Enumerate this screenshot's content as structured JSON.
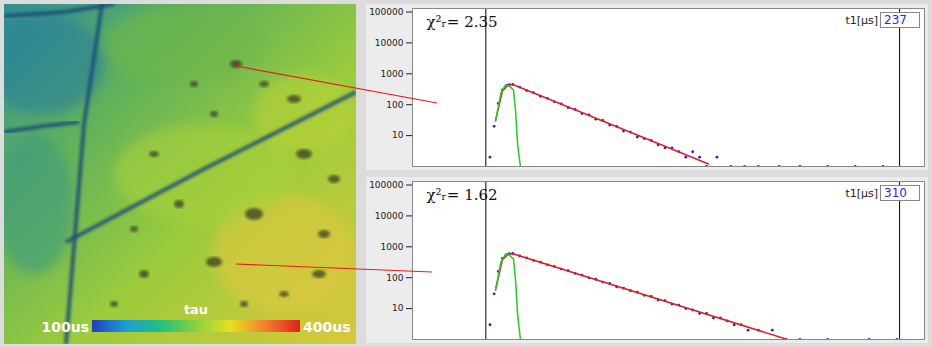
{
  "chart_data": [
    {
      "type": "scatter",
      "log": "y",
      "grid": true,
      "tick_labels": "y",
      "xlim": [
        0,
        3700
      ],
      "ylim": [
        1,
        130000
      ],
      "yticks": [
        10,
        100,
        1000,
        10000,
        100000
      ],
      "chi_label": "χ²ᵣ=",
      "chi2": 2.35,
      "t1_label": "t1[µs]",
      "t1": 237,
      "cursors": [
        530,
        3520
      ],
      "series": [
        {
          "type": "scatter",
          "marker": "dot",
          "color": "#2020e0",
          "x": [
            560,
            590,
            620,
            650,
            680,
            700,
            725,
            775,
            825,
            875,
            925,
            975,
            1025,
            1075,
            1125,
            1175,
            1225,
            1275,
            1325,
            1375,
            1425,
            1475,
            1525,
            1575,
            1625,
            1675,
            1725,
            1775,
            1825,
            1875,
            1925,
            1975,
            2025,
            2075,
            2125,
            2200,
            2300,
            2400,
            2500,
            2650,
            2800,
            3000,
            3200,
            3400
          ],
          "values": [
            2,
            20,
            110,
            300,
            420,
            450,
            455,
            372,
            288,
            245,
            188,
            161,
            124,
            106,
            80,
            70,
            52,
            47,
            34,
            31,
            22,
            20,
            14,
            13,
            9,
            8,
            7,
            5,
            4,
            4,
            3,
            2,
            3,
            2,
            1,
            2,
            1,
            1,
            1,
            1,
            1,
            1,
            1,
            1
          ]
        },
        {
          "type": "line",
          "line_style": "solid",
          "color": "#e02020",
          "x": [
            600,
            650,
            690,
            725,
            2140
          ],
          "values": [
            30,
            280,
            430,
            450,
            1.2
          ]
        },
        {
          "type": "line",
          "line_style": "solid",
          "color": "#22cc22",
          "x": [
            600,
            640,
            670,
            700,
            730,
            745,
            760,
            780
          ],
          "values": [
            30,
            250,
            420,
            400,
            300,
            60,
            5,
            1
          ]
        }
      ]
    },
    {
      "type": "scatter",
      "log": "y",
      "grid": true,
      "tick_labels": "y",
      "xlim": [
        0,
        3700
      ],
      "ylim": [
        1,
        130000
      ],
      "yticks": [
        10,
        100,
        1000,
        10000,
        100000
      ],
      "chi_label": "χ²ᵣ=",
      "chi2": 1.62,
      "t1_label": "t1[µs]",
      "t1": 310,
      "cursors": [
        530,
        3520
      ],
      "series": [
        {
          "type": "scatter",
          "marker": "dot",
          "color": "#2020e0",
          "x": [
            560,
            590,
            620,
            650,
            680,
            700,
            725,
            775,
            825,
            875,
            925,
            975,
            1025,
            1075,
            1125,
            1175,
            1225,
            1275,
            1325,
            1375,
            1425,
            1475,
            1525,
            1575,
            1625,
            1675,
            1725,
            1775,
            1825,
            1875,
            1925,
            1975,
            2025,
            2075,
            2125,
            2175,
            2225,
            2275,
            2325,
            2375,
            2425,
            2500,
            2600,
            2700,
            2800,
            3000,
            3300,
            3500
          ],
          "values": [
            3,
            30,
            160,
            420,
            560,
            600,
            610,
            505,
            440,
            362,
            320,
            262,
            232,
            190,
            170,
            138,
            122,
            99,
            89,
            72,
            65,
            51,
            46,
            38,
            34,
            27,
            25,
            19,
            18,
            14,
            13,
            10,
            9,
            7,
            7,
            5,
            5,
            4,
            3,
            3,
            2,
            2,
            2,
            1,
            1,
            1,
            1,
            1
          ]
        },
        {
          "type": "line",
          "line_style": "solid",
          "color": "#e02020",
          "x": [
            600,
            650,
            690,
            725,
            2710
          ],
          "values": [
            40,
            380,
            570,
            600,
            1
          ]
        },
        {
          "type": "line",
          "line_style": "solid",
          "color": "#22cc22",
          "x": [
            600,
            640,
            670,
            700,
            730,
            745,
            760,
            780
          ],
          "values": [
            40,
            330,
            560,
            540,
            400,
            80,
            6,
            1
          ]
        }
      ]
    }
  ],
  "image": {
    "colorbar": {
      "label": "tau",
      "range": [
        100,
        400
      ],
      "ticks": [
        {
          "value": 100,
          "label": "100us"
        },
        {
          "value": 400,
          "label": "400us"
        }
      ]
    }
  }
}
